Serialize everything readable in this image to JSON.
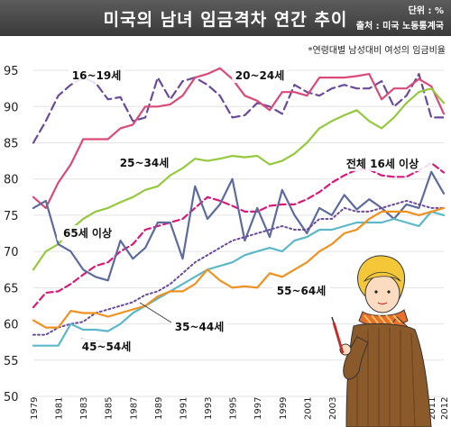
{
  "header": {
    "title": "미국의 남녀 임금격차 연간 추이",
    "unit": "단위 : %",
    "source": "출처 : 미국 노동통계국"
  },
  "note": "*연령대별 남성대비 여성의 임금비율",
  "chart_data": {
    "type": "line",
    "title": "미국의 남녀 임금격차 연간 추이",
    "xlabel": "",
    "ylabel": "",
    "x": [
      1979,
      1980,
      1981,
      1982,
      1983,
      1984,
      1985,
      1986,
      1987,
      1988,
      1989,
      1990,
      1991,
      1992,
      1993,
      1994,
      1995,
      1996,
      1997,
      1998,
      1999,
      2000,
      2001,
      2002,
      2003,
      2004,
      2005,
      2006,
      2007,
      2008,
      2009,
      2010,
      2011,
      2012
    ],
    "x_tick_labels": [
      "1979",
      "1981",
      "1983",
      "1985",
      "1987",
      "1989",
      "1991",
      "1993",
      "1995",
      "1997",
      "1999",
      "2001",
      "2003",
      "2005",
      "2007",
      "2009",
      "2011",
      "2012"
    ],
    "ylim": [
      50,
      97
    ],
    "y_ticks": [
      50,
      55,
      60,
      65,
      70,
      75,
      80,
      85,
      90,
      95
    ],
    "grid": true,
    "series": [
      {
        "name": "16~19세",
        "color": "#6b4a9a",
        "dash": "long",
        "values": [
          85,
          88,
          91.5,
          93,
          94,
          93.3,
          91,
          91.3,
          88,
          88.5,
          94,
          91,
          93.5,
          94,
          93,
          91.5,
          88.5,
          88.8,
          90.5,
          90,
          89,
          93,
          92,
          91.5,
          92.5,
          93,
          92.5,
          92.5,
          93.5,
          90,
          91.5,
          94.5,
          88.5,
          88.5
        ]
      },
      {
        "name": "20~24세",
        "color": "#d94a78",
        "dash": "solid",
        "values": [
          77.5,
          76,
          79.5,
          82,
          85.5,
          85.5,
          85.5,
          87,
          87.5,
          90,
          90,
          90.3,
          91.5,
          94,
          94.5,
          95.3,
          93.8,
          91.5,
          90.8,
          89.5,
          92,
          92,
          91.5,
          94,
          94,
          94,
          94.2,
          94.5,
          91,
          92.5,
          92.5,
          93.8,
          92.8,
          89
        ]
      },
      {
        "name": "25~34세",
        "color": "#95c93d",
        "dash": "solid",
        "values": [
          67.5,
          70,
          71,
          73,
          74.5,
          75.5,
          76,
          76.8,
          77.5,
          78.5,
          79,
          80.5,
          81.5,
          82.8,
          82.5,
          82.8,
          83.2,
          83,
          83.2,
          82,
          82.5,
          83.5,
          85,
          87,
          88,
          88.8,
          89.5,
          88,
          87,
          88.5,
          90.5,
          92,
          92.5,
          90.5
        ]
      },
      {
        "name": "전체 16세 이상",
        "color": "#d71a7a",
        "dash": "dash",
        "values": [
          62.3,
          64.3,
          64.5,
          65.5,
          66.8,
          68,
          68.5,
          70,
          71,
          73,
          73.5,
          74,
          74.5,
          76,
          77.5,
          77,
          76.3,
          75.5,
          75.5,
          76.3,
          76.5,
          76.5,
          77.2,
          78.2,
          79.5,
          80.5,
          81.3,
          81.3,
          80.5,
          80.3,
          80.3,
          81.2,
          82.2,
          80.9
        ]
      },
      {
        "name": "65세 이상",
        "color": "#5d6b9c",
        "dash": "solid",
        "values": [
          76,
          77,
          71,
          70,
          67.5,
          66.5,
          66,
          71.5,
          69,
          70.5,
          74,
          74,
          69,
          79,
          74.5,
          76.5,
          80,
          71.5,
          76,
          72,
          78.5,
          75,
          72.5,
          76,
          75,
          77.8,
          75.8,
          77.2,
          76,
          74.5,
          76.5,
          76,
          81,
          78
        ]
      },
      {
        "name": "35~44세",
        "color": "#6a4a9c",
        "dash": "dot",
        "values": [
          58.5,
          58.5,
          59.5,
          60,
          60.3,
          61.5,
          62,
          62.5,
          63,
          64,
          64.5,
          65.5,
          67,
          68.5,
          69.5,
          70.5,
          71.5,
          72,
          72.5,
          73,
          73.5,
          73,
          73,
          74.5,
          74.5,
          76,
          75.5,
          75.5,
          76,
          76.5,
          77,
          76.5,
          76,
          76
        ]
      },
      {
        "name": "45~54세",
        "color": "#5bb8c8",
        "dash": "solid",
        "values": [
          57,
          57,
          57,
          60,
          59.2,
          59.2,
          59,
          60,
          61.5,
          62.5,
          63.5,
          64.5,
          65.5,
          66.5,
          67.5,
          68,
          68.5,
          69.5,
          70,
          70.5,
          70,
          71.5,
          72,
          73,
          73,
          73.5,
          74,
          74,
          74,
          74.5,
          74,
          73.5,
          75.5,
          75
        ]
      },
      {
        "name": "55~64세",
        "color": "#f0901e",
        "dash": "solid",
        "values": [
          60.5,
          59.5,
          59.5,
          61.8,
          61.5,
          61.5,
          61,
          61.5,
          62,
          62.5,
          63.8,
          64.5,
          64.5,
          65.5,
          67.5,
          66,
          65,
          65.2,
          65,
          67,
          66.5,
          67.5,
          68.5,
          70,
          71,
          72.5,
          73,
          74.5,
          75.5,
          75.5,
          75.5,
          75,
          75.5,
          76
        ]
      }
    ]
  }
}
